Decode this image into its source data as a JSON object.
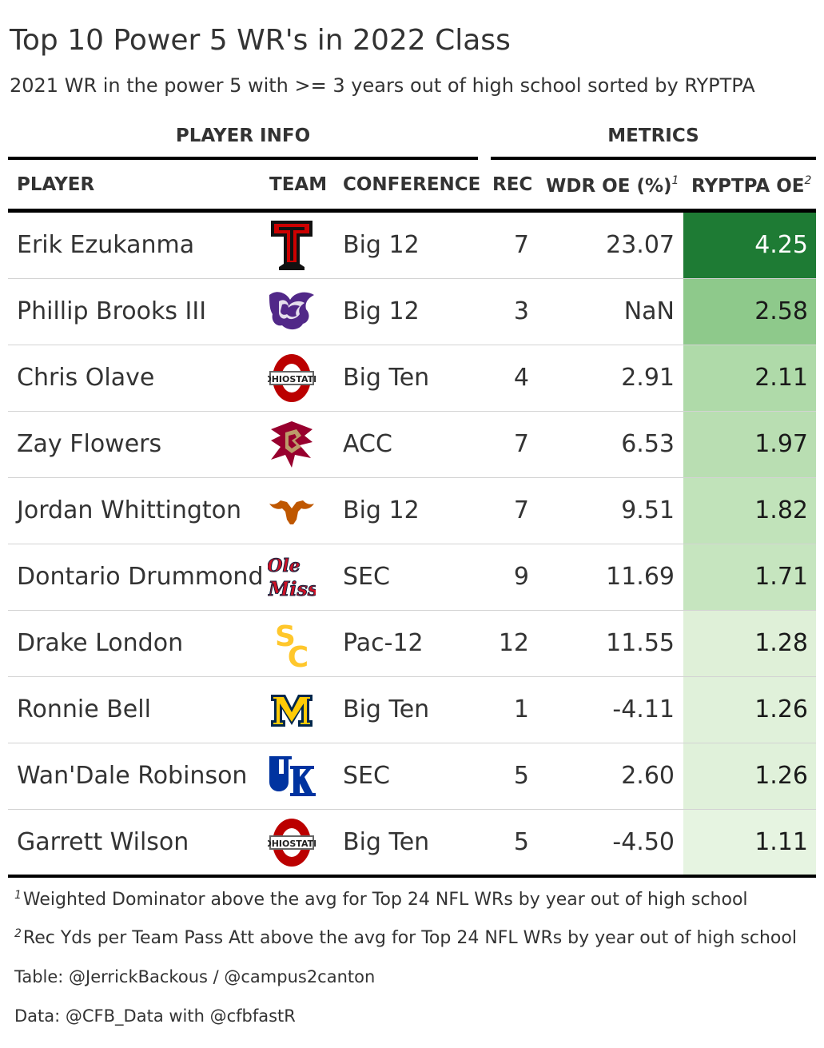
{
  "title": "Top 10 Power 5 WR's in 2022 Class",
  "subtitle": "2021 WR in the power 5 with >= 3 years out of high school sorted by RYPTPA",
  "spanners": {
    "player_info": "PLAYER INFO",
    "metrics": "METRICS"
  },
  "columns": {
    "player": "PLAYER",
    "team": "TEAM",
    "conference": "CONFERENCE",
    "rec": "REC",
    "wdr": "WDR OE (%)",
    "wdr_mark": "1",
    "ryptpa": "RYPTPA OE",
    "ryptpa_mark": "2"
  },
  "chart_data": {
    "type": "table",
    "rows": [
      {
        "player": "Erik Ezukanma",
        "team_logo": "texas-tech-logo",
        "conference": "Big 12",
        "rec": "7",
        "wdr": "23.07",
        "ryptpa": "4.25",
        "ryptpa_value": 4.25,
        "fill": "#1e7b34",
        "text_color": "#ffffff"
      },
      {
        "player": "Phillip Brooks III",
        "team_logo": "kansas-state-logo",
        "conference": "Big 12",
        "rec": "3",
        "wdr": "NaN",
        "ryptpa": "2.58",
        "ryptpa_value": 2.58,
        "fill": "#8ec98b",
        "text_color": "#1a1a1a"
      },
      {
        "player": "Chris Olave",
        "team_logo": "ohio-state-logo",
        "conference": "Big Ten",
        "rec": "4",
        "wdr": "2.91",
        "ryptpa": "2.11",
        "ryptpa_value": 2.11,
        "fill": "#afdaa9",
        "text_color": "#1a1a1a"
      },
      {
        "player": "Zay Flowers",
        "team_logo": "boston-college-logo",
        "conference": "ACC",
        "rec": "7",
        "wdr": "6.53",
        "ryptpa": "1.97",
        "ryptpa_value": 1.97,
        "fill": "#b9deb2",
        "text_color": "#1a1a1a"
      },
      {
        "player": "Jordan Whittington",
        "team_logo": "texas-logo",
        "conference": "Big 12",
        "rec": "7",
        "wdr": "9.51",
        "ryptpa": "1.82",
        "ryptpa_value": 1.82,
        "fill": "#c1e3ba",
        "text_color": "#1a1a1a"
      },
      {
        "player": "Dontario Drummond",
        "team_logo": "ole-miss-logo",
        "conference": "SEC",
        "rec": "9",
        "wdr": "11.69",
        "ryptpa": "1.71",
        "ryptpa_value": 1.71,
        "fill": "#c6e5bf",
        "text_color": "#1a1a1a"
      },
      {
        "player": "Drake London",
        "team_logo": "usc-logo",
        "conference": "Pac-12",
        "rec": "12",
        "wdr": "11.55",
        "ryptpa": "1.28",
        "ryptpa_value": 1.28,
        "fill": "#dff0d8",
        "text_color": "#1a1a1a"
      },
      {
        "player": "Ronnie Bell",
        "team_logo": "michigan-logo",
        "conference": "Big Ten",
        "rec": "1",
        "wdr": "-4.11",
        "ryptpa": "1.26",
        "ryptpa_value": 1.26,
        "fill": "#e0f1da",
        "text_color": "#1a1a1a"
      },
      {
        "player": "Wan'Dale Robinson",
        "team_logo": "kentucky-logo",
        "conference": "SEC",
        "rec": "5",
        "wdr": "2.60",
        "ryptpa": "1.26",
        "ryptpa_value": 1.26,
        "fill": "#e0f1da",
        "text_color": "#1a1a1a"
      },
      {
        "player": "Garrett Wilson",
        "team_logo": "ohio-state-logo",
        "conference": "Big Ten",
        "rec": "5",
        "wdr": "-4.50",
        "ryptpa": "1.11",
        "ryptpa_value": 1.11,
        "fill": "#e6f4e1",
        "text_color": "#1a1a1a"
      }
    ]
  },
  "footnotes": [
    {
      "mark": "1",
      "text": "Weighted Dominator above the avg for Top 24 NFL WRs by year out of high school"
    },
    {
      "mark": "2",
      "text": "Rec Yds per Team Pass Att above the avg for Top 24 NFL WRs by year out of high school"
    }
  ],
  "source_table": "Table: @JerrickBackous / @campus2canton",
  "source_data": "Data: @CFB_Data with @cfbfastR"
}
